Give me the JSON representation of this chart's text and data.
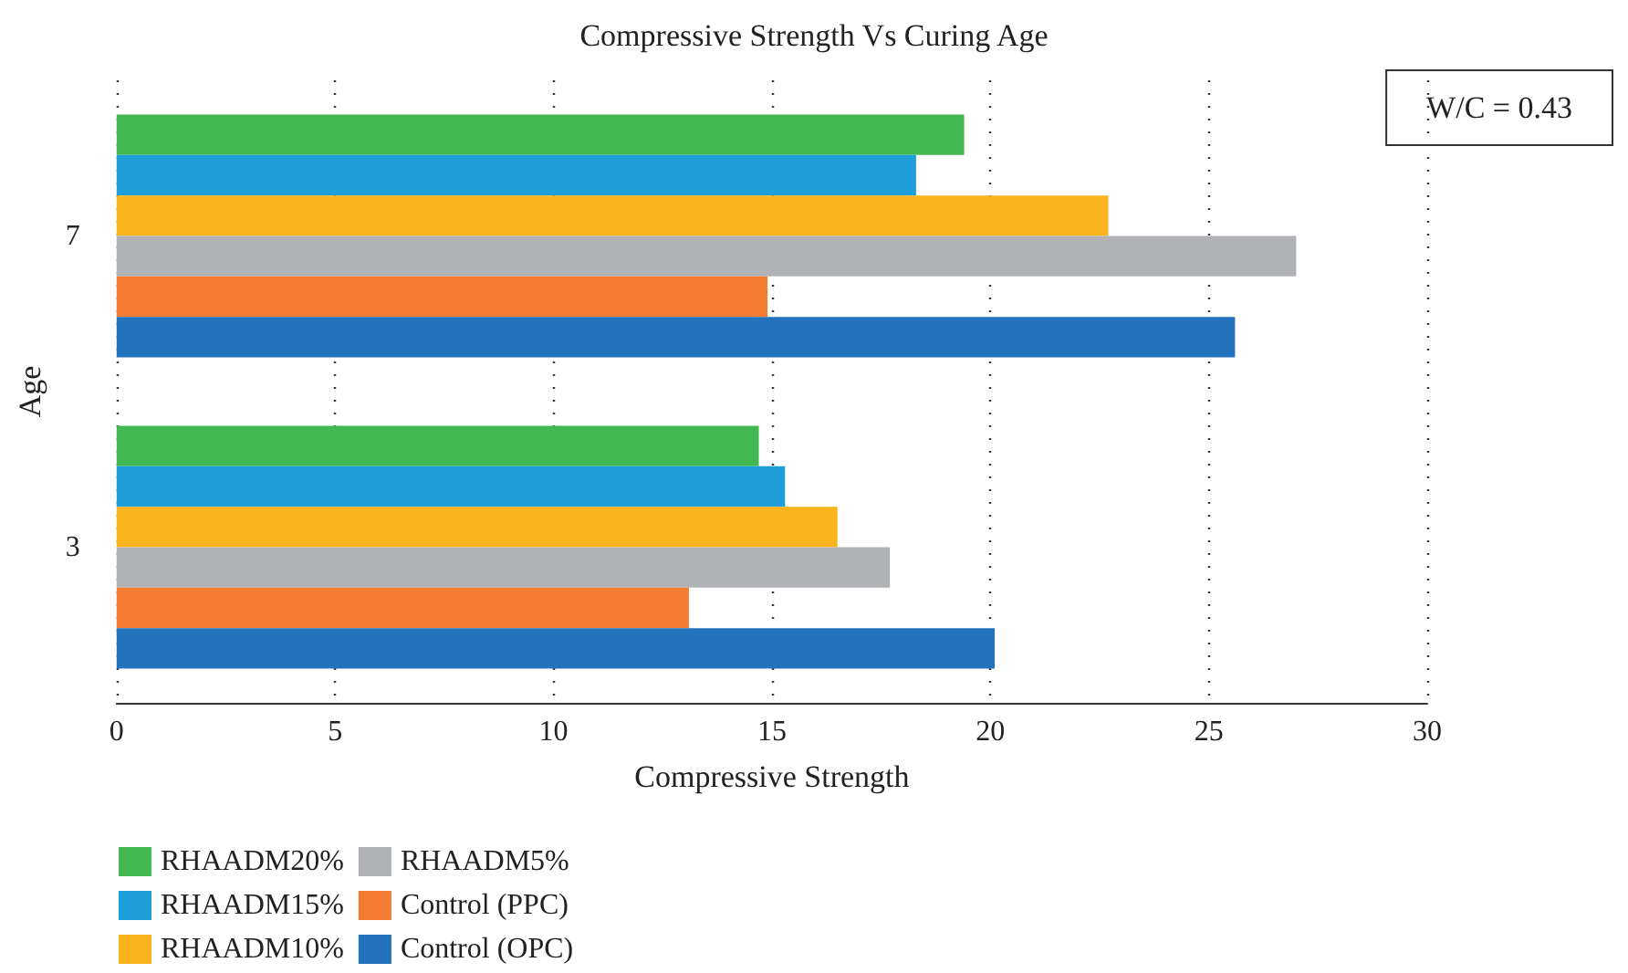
{
  "chart_data": {
    "type": "bar",
    "orientation": "horizontal",
    "title": "Compressive Strength Vs Curing Age",
    "xlabel": "Compressive Strength",
    "ylabel": "Age",
    "categories": [
      "7",
      "3"
    ],
    "series": [
      {
        "name": "RHAADM20%",
        "color": "#43b751",
        "values": [
          19.4,
          14.7
        ]
      },
      {
        "name": "RHAADM15%",
        "color": "#1e9fd9",
        "values": [
          18.3,
          15.3
        ]
      },
      {
        "name": "RHAADM10%",
        "color": "#fbb41e",
        "values": [
          22.7,
          16.5
        ]
      },
      {
        "name": "RHAADM5%",
        "color": "#b1b2b5",
        "values": [
          27.0,
          17.7
        ]
      },
      {
        "name": "Control (PPC)",
        "color": "#f47c32",
        "values": [
          14.9,
          13.1
        ]
      },
      {
        "name": "Control (OPC)",
        "color": "#2373bc",
        "values": [
          25.6,
          20.1
        ]
      }
    ],
    "xlim": [
      0,
      30
    ],
    "xticks": [
      0,
      5,
      10,
      15,
      20,
      25,
      30
    ],
    "grid": "x",
    "legend": "bottom",
    "annotations": [
      "W/C = 0.43"
    ]
  }
}
